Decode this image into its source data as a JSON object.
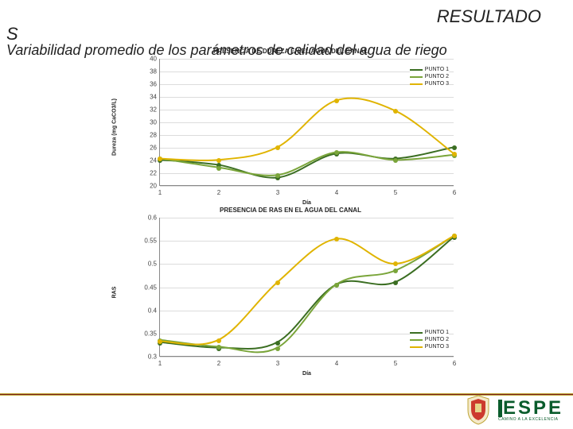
{
  "title_resultado": "RESULTADO",
  "title_s": "S",
  "subtitle": "Variabilidad promedio de los parámetros de calidad del agua de riego",
  "footer": {
    "logo_letters": "ESPE",
    "logo_tagline": "CAMINO A LA EXCELENCIA"
  },
  "chart1": {
    "title": "PRESENCIA DE DUREZA EN EL AGUA DEL CANAL",
    "ylabel": "Dureza (mg CaCO3/L)",
    "xlabel": "Día",
    "ylim": [
      20,
      40
    ],
    "ytick_step": 2,
    "xlim": [
      1,
      6
    ],
    "xticks": [
      1,
      2,
      3,
      4,
      5,
      6
    ],
    "background": "#ffffff",
    "grid_color": "#dcdcdc",
    "line_width": 2,
    "marker_radius": 3,
    "title_fontsize": 8,
    "label_fontsize": 7,
    "tick_fontsize": 8,
    "series": [
      {
        "name": "PUNTO 1",
        "color": "#3b6e22",
        "x": [
          1,
          2,
          3,
          4,
          5,
          6
        ],
        "y": [
          24.0,
          23.2,
          21.2,
          25.0,
          24.2,
          26.0
        ]
      },
      {
        "name": "PUNTO 2",
        "color": "#7aa53a",
        "x": [
          1,
          2,
          3,
          4,
          5,
          6
        ],
        "y": [
          24.2,
          22.8,
          21.6,
          25.2,
          24.0,
          24.8
        ]
      },
      {
        "name": "PUNTO 3",
        "color": "#e0b400",
        "x": [
          1,
          2,
          3,
          4,
          5,
          6
        ],
        "y": [
          24.2,
          24.0,
          26.0,
          33.4,
          31.8,
          25.0
        ]
      }
    ],
    "legend_pos": "top-right"
  },
  "chart2": {
    "title": "PRESENCIA DE RAS EN EL AGUA DEL CANAL",
    "ylabel": "RAS",
    "xlabel": "Día",
    "ylim": [
      0.3,
      0.6
    ],
    "ytick_step": 0.05,
    "xlim": [
      1,
      6
    ],
    "xticks": [
      1,
      2,
      3,
      4,
      5,
      6
    ],
    "background": "#ffffff",
    "grid_color": "#dcdcdc",
    "line_width": 2,
    "marker_radius": 3,
    "title_fontsize": 8,
    "label_fontsize": 7,
    "tick_fontsize": 8,
    "series": [
      {
        "name": "PUNTO 1",
        "color": "#3b6e22",
        "x": [
          1,
          2,
          3,
          4,
          5,
          6
        ],
        "y": [
          0.33,
          0.318,
          0.33,
          0.455,
          0.46,
          0.558
        ]
      },
      {
        "name": "PUNTO 2",
        "color": "#7aa53a",
        "x": [
          1,
          2,
          3,
          4,
          5,
          6
        ],
        "y": [
          0.335,
          0.32,
          0.318,
          0.455,
          0.485,
          0.56
        ]
      },
      {
        "name": "PUNTO 3",
        "color": "#e0b400",
        "x": [
          1,
          2,
          3,
          4,
          5,
          6
        ],
        "y": [
          0.332,
          0.335,
          0.46,
          0.554,
          0.5,
          0.56
        ]
      }
    ],
    "legend_pos": "bottom-right"
  }
}
